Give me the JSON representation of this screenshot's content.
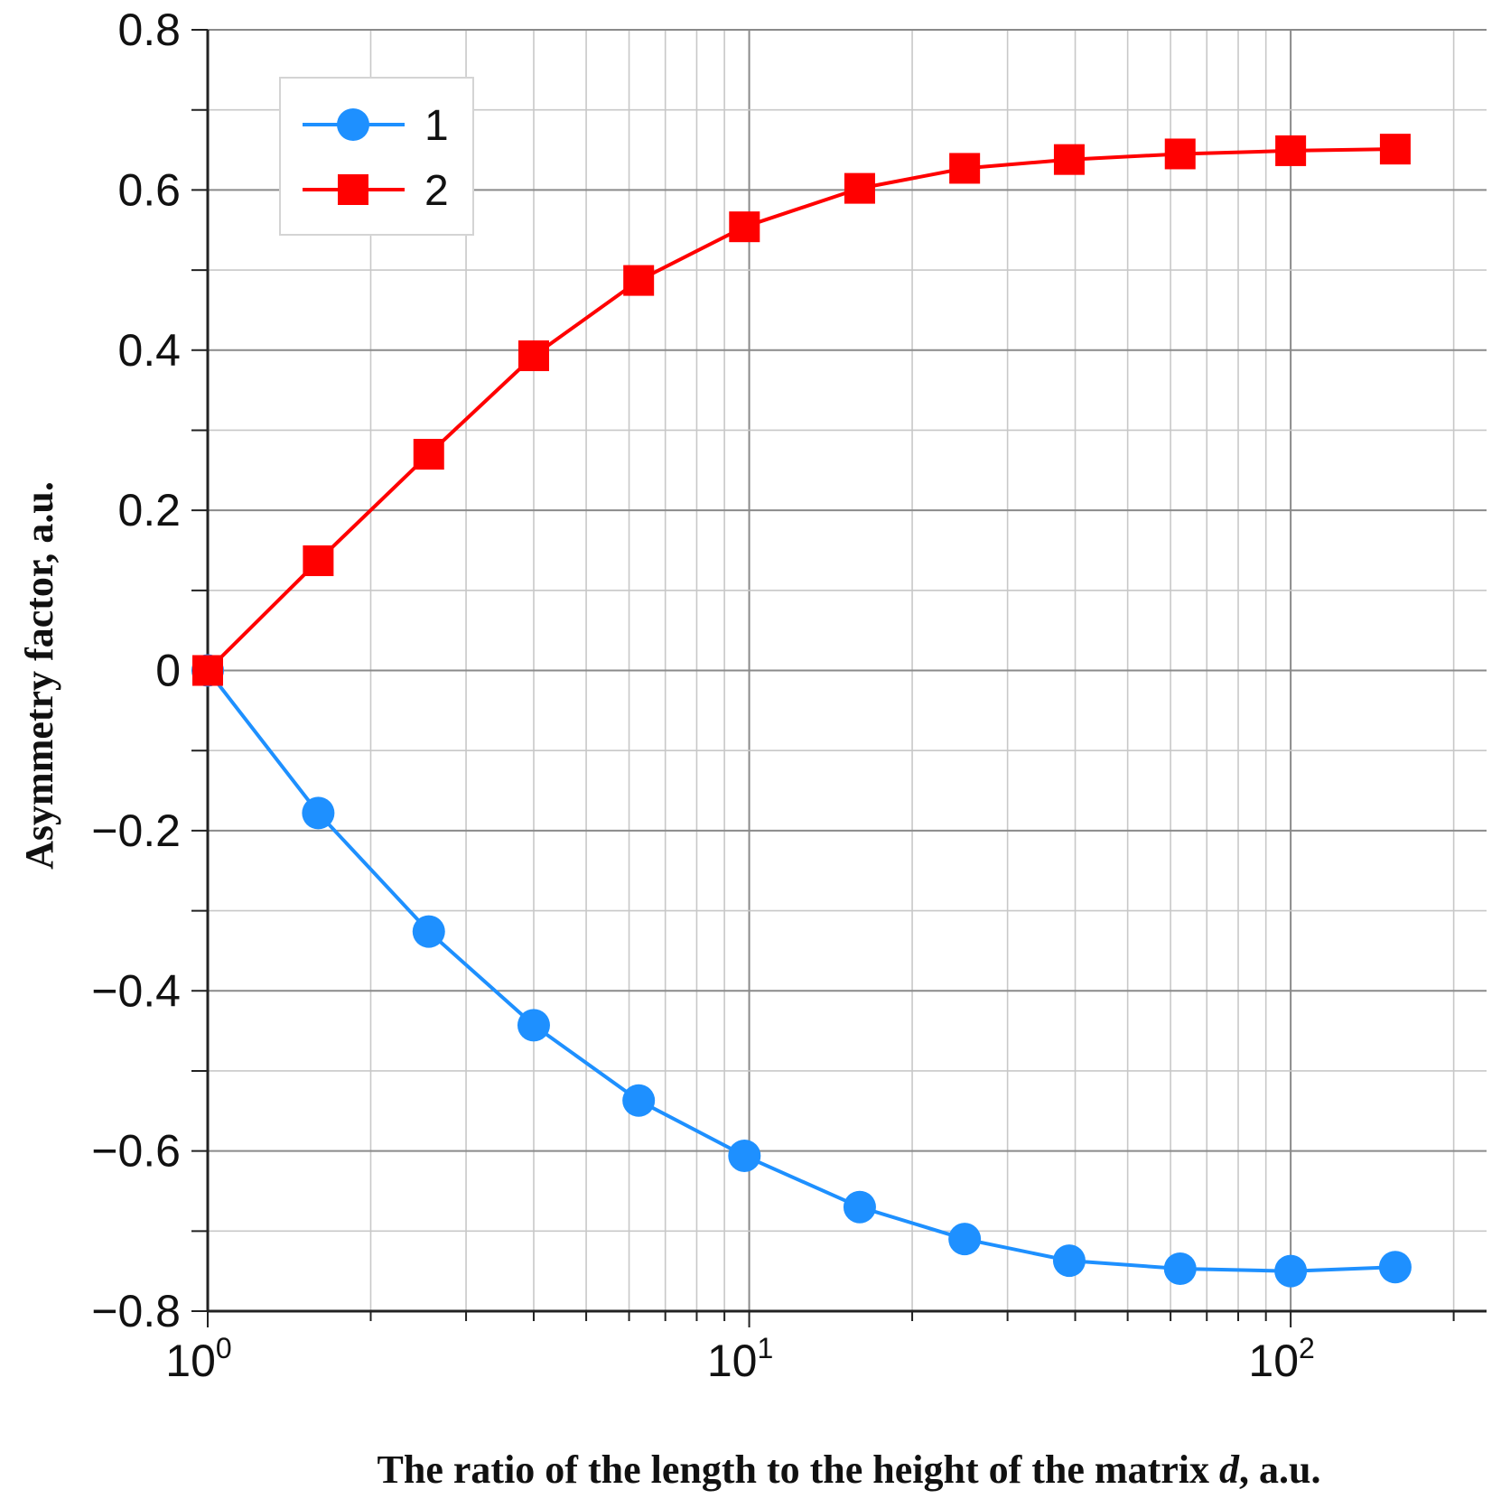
{
  "chart_data": {
    "type": "line",
    "xscale": "log",
    "xlim": [
      1,
      230
    ],
    "ylim": [
      -0.8,
      0.8
    ],
    "xlabel": "The ratio of the length to the height of the matrix d, a.u.",
    "xlabel_parts": {
      "pre": "The ratio of the length to the height of the matrix ",
      "italic": "d",
      "post": ", a.u."
    },
    "ylabel": "Asymmetry factor, a.u.",
    "x_ticks": [
      {
        "value": 1,
        "base": "10",
        "exp": "0"
      },
      {
        "value": 10,
        "base": "10",
        "exp": "1"
      },
      {
        "value": 100,
        "base": "10",
        "exp": "2"
      }
    ],
    "y_ticks": [
      {
        "value": 0.8,
        "label": "0.8"
      },
      {
        "value": 0.6,
        "label": "0.6"
      },
      {
        "value": 0.4,
        "label": "0.4"
      },
      {
        "value": 0.2,
        "label": "0.2"
      },
      {
        "value": 0,
        "label": "0"
      },
      {
        "value": -0.2,
        "label": "−0.2"
      },
      {
        "value": -0.4,
        "label": "−0.4"
      },
      {
        "value": -0.6,
        "label": "−0.6"
      },
      {
        "value": -0.8,
        "label": "−0.8"
      }
    ],
    "y_minor_step": 0.1,
    "grid": true,
    "legend_position": "top-left",
    "x": [
      1,
      1.6,
      2.56,
      4,
      6.25,
      9.8,
      16,
      25,
      39,
      62.5,
      100,
      156
    ],
    "series": [
      {
        "name": "1",
        "marker": "circle",
        "color": "#1e90ff",
        "values": [
          0,
          -0.178,
          -0.326,
          -0.443,
          -0.537,
          -0.606,
          -0.67,
          -0.71,
          -0.737,
          -0.747,
          -0.75,
          -0.745
        ]
      },
      {
        "name": "2",
        "marker": "square",
        "color": "#ff0000",
        "values": [
          0,
          0.137,
          0.27,
          0.393,
          0.487,
          0.554,
          0.602,
          0.627,
          0.638,
          0.645,
          0.649,
          0.651
        ]
      }
    ]
  }
}
